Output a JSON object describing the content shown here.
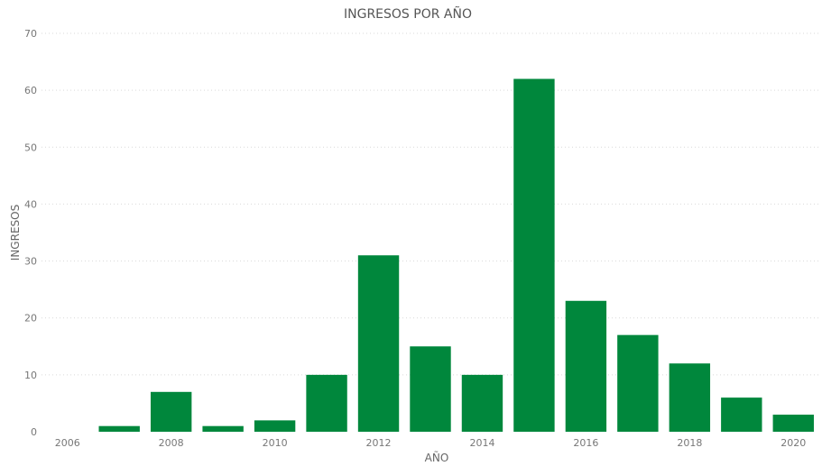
{
  "chart_data": {
    "type": "bar",
    "title": "INGRESOS POR AÑO",
    "xlabel": "AÑO",
    "ylabel": "INGRESOS",
    "x": [
      2007,
      2008,
      2009,
      2010,
      2011,
      2012,
      2013,
      2014,
      2015,
      2016,
      2017,
      2018,
      2019,
      2020
    ],
    "values": [
      1,
      7,
      1,
      2,
      10,
      31,
      15,
      10,
      62,
      23,
      17,
      12,
      6,
      3
    ],
    "x_ticks": [
      2006,
      2008,
      2010,
      2012,
      2014,
      2016,
      2018,
      2020
    ],
    "y_ticks": [
      0,
      10,
      20,
      30,
      40,
      50,
      60,
      70
    ],
    "ylim": [
      0,
      70
    ],
    "xlim": [
      2006,
      2020
    ],
    "grid": true,
    "bar_color": "#00873C"
  }
}
